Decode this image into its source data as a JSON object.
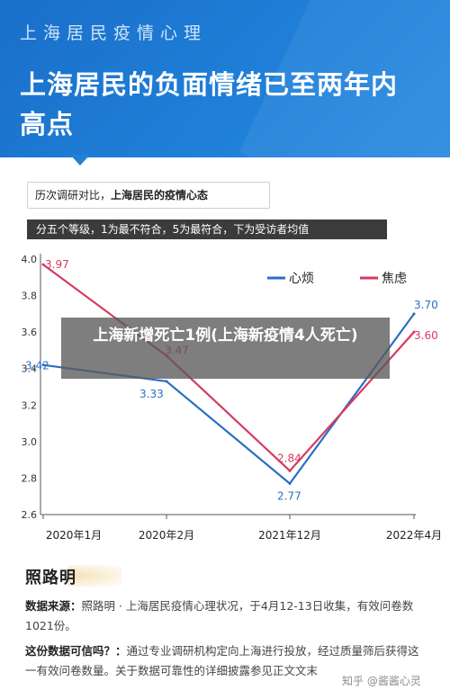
{
  "header": {
    "top_title": "上海居民疫情心理",
    "headline": "上海居民的负面情绪已至两年内高点"
  },
  "caption": {
    "prefix": "历次调研对比，",
    "bold": "上海居民的疫情心态"
  },
  "scale_note": "分五个等级，1为最不符合，5为最符合，下为受访者均值",
  "overlay_text": "上海新增死亡1例(上海新疫情4人死亡)",
  "colors": {
    "series_a": "#2a6fc4",
    "series_b": "#d63a5e",
    "header": "#1f7fd8"
  },
  "chart_data": {
    "type": "line",
    "categories": [
      "2020年1月",
      "2020年2月",
      "2021年12月",
      "2022年4月"
    ],
    "series": [
      {
        "name": "心烦",
        "values": [
          3.42,
          3.33,
          2.77,
          3.7
        ],
        "labels": [
          "3.42",
          "3.33",
          "2.77",
          "3.70"
        ]
      },
      {
        "name": "焦虑",
        "values": [
          3.97,
          3.47,
          2.84,
          3.6
        ],
        "labels": [
          "3.97",
          "3.47",
          "2.84",
          "3.60"
        ]
      }
    ],
    "y_ticks": [
      "4.0",
      "3.8",
      "3.6",
      "3.4",
      "3.2",
      "3.0",
      "2.8",
      "2.6"
    ],
    "ylim": [
      2.6,
      4.0
    ],
    "grid": false,
    "legend_position": "top-right"
  },
  "source": {
    "logo": "照路明",
    "data_source_label": "数据来源：",
    "data_source_text": "照路明 · 上海居民疫情心理状况，于4月12-13日收集，有效问卷数1021份。",
    "reliability_label": "这份数据可信吗？：",
    "reliability_text": "通过专业调研机构定向上海进行投放，经过质量筛后获得这一有效问卷数量。关于数据可靠性的详细披露参见正文文末"
  },
  "watermark": "知乎 @酱酱心灵"
}
